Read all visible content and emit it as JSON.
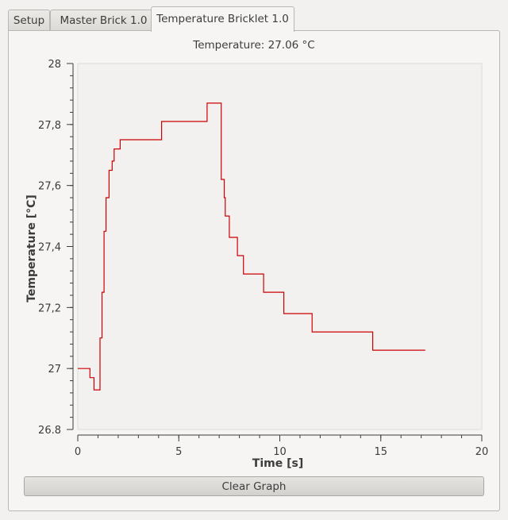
{
  "tabs": [
    {
      "label": "Setup",
      "active": false
    },
    {
      "label": "Master Brick 1.0",
      "active": false
    },
    {
      "label": "Temperature Bricklet 1.0",
      "active": true
    }
  ],
  "reading": {
    "text": "Temperature: 27.06 °C"
  },
  "clear_button": {
    "label": "Clear Graph"
  },
  "colors": {
    "line": "#cc0000",
    "plot_bg": "#f2f1f0",
    "panel_bg": "#f6f5f4"
  },
  "chart_data": {
    "type": "line",
    "title": "",
    "xlabel": "Time [s]",
    "ylabel": "Temperature [°C]",
    "xlim": [
      0,
      20
    ],
    "ylim": [
      26.8,
      28
    ],
    "xticks": [
      0,
      5,
      10,
      15,
      20
    ],
    "xtick_labels": [
      "0",
      "5",
      "10",
      "15",
      "20"
    ],
    "yticks": [
      26.8,
      27,
      27.2,
      27.4,
      27.6,
      27.8,
      28
    ],
    "ytick_labels": [
      "26.8",
      "27",
      "27,2",
      "27,4",
      "27,6",
      "27,8",
      "28"
    ],
    "grid": false,
    "series": [
      {
        "x": [
          0,
          0.6,
          0.6,
          0.8,
          0.8,
          1.1,
          1.1,
          1.2,
          1.2,
          1.3,
          1.3,
          1.4,
          1.4,
          1.55,
          1.55,
          1.7,
          1.7,
          1.75,
          1.75,
          1.8,
          1.8,
          2.1,
          2.1,
          2.25,
          2.25,
          4.15,
          4.15,
          6.4,
          6.4,
          6.55,
          6.55,
          7.1,
          7.1,
          7.25,
          7.25,
          7.3,
          7.3,
          7.5,
          7.5,
          7.9,
          7.9,
          8.2,
          8.2,
          9.2,
          9.2,
          10.2,
          10.2,
          11.6,
          11.6,
          14.6,
          14.6,
          17.2
        ],
        "y": [
          27.0,
          27.0,
          26.97,
          26.97,
          26.93,
          26.93,
          27.1,
          27.1,
          27.25,
          27.25,
          27.45,
          27.45,
          27.56,
          27.56,
          27.65,
          27.65,
          27.68,
          27.68,
          27.68,
          27.68,
          27.72,
          27.72,
          27.75,
          27.75,
          27.75,
          27.75,
          27.81,
          27.81,
          27.87,
          27.87,
          27.87,
          27.87,
          27.62,
          27.62,
          27.56,
          27.56,
          27.5,
          27.5,
          27.43,
          27.43,
          27.37,
          27.37,
          27.31,
          27.31,
          27.25,
          27.25,
          27.18,
          27.18,
          27.12,
          27.12,
          27.06,
          27.06
        ]
      }
    ]
  }
}
